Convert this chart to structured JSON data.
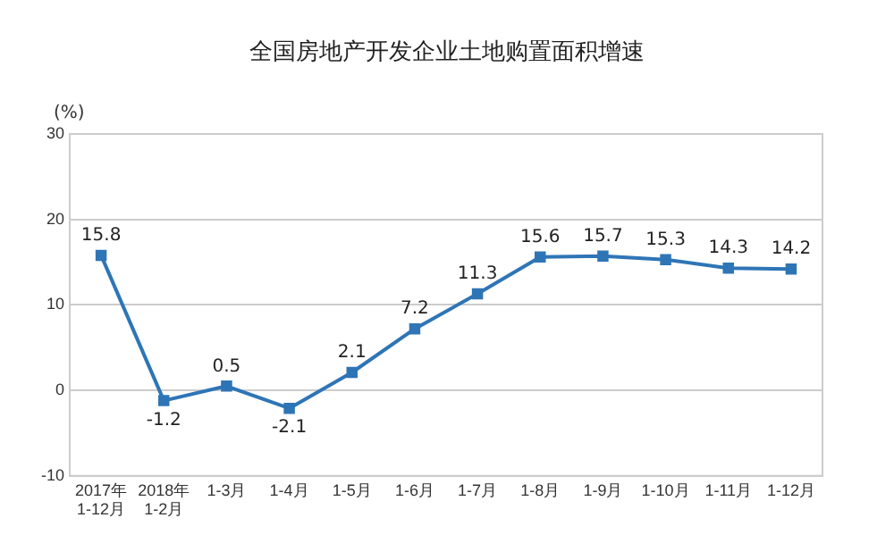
{
  "chart_data": {
    "type": "line",
    "title": "全国房地产开发企业土地购置面积增速",
    "ylabel": "(%)",
    "categories": [
      "2017年\n1-12月",
      "2018年\n1-2月",
      "1-3月",
      "1-4月",
      "1-5月",
      "1-6月",
      "1-7月",
      "1-8月",
      "1-9月",
      "1-10月",
      "1-11月",
      "1-12月"
    ],
    "series": [
      {
        "color": "#2e75b6",
        "values": [
          15.8,
          -1.2,
          0.5,
          -2.1,
          2.1,
          7.2,
          11.3,
          15.6,
          15.7,
          15.3,
          14.3,
          14.2
        ]
      }
    ],
    "ylim": [
      -10,
      30
    ],
    "yticks": [
      -10,
      0,
      10,
      20,
      30
    ],
    "grid": "y",
    "marker": "square",
    "line_style": "solid",
    "data_labels": true,
    "legend": false
  }
}
